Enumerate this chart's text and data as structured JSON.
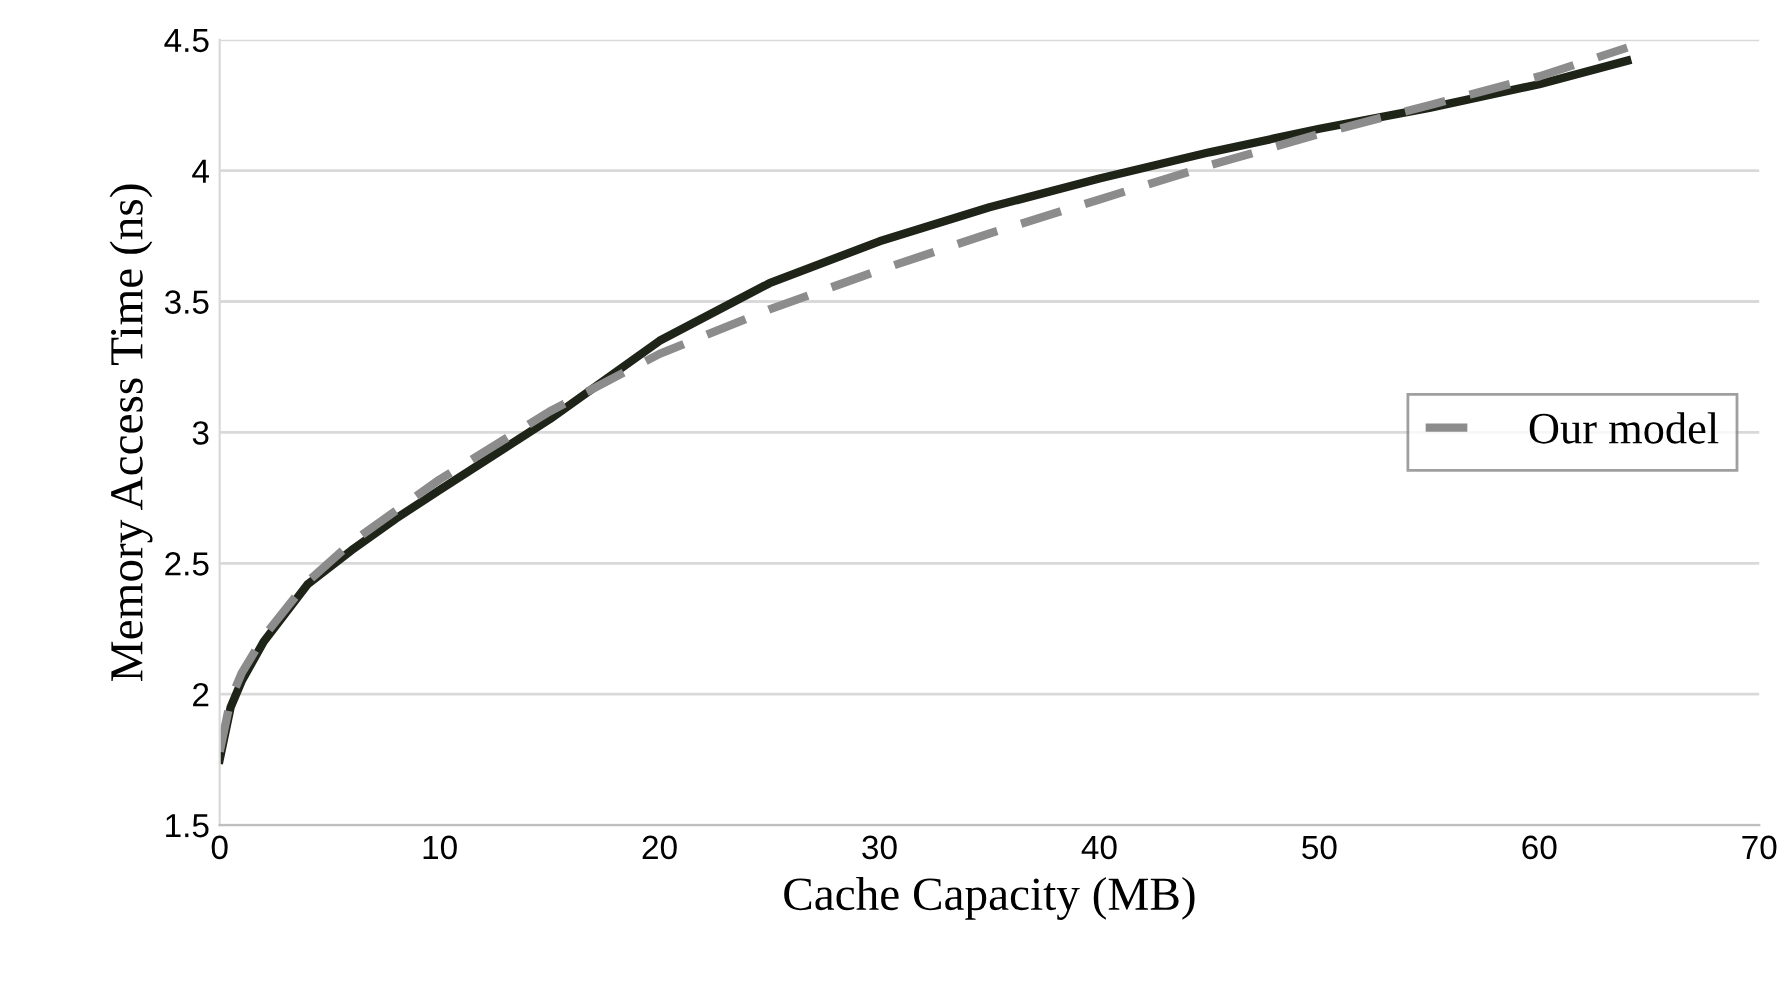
{
  "chart_data": {
    "type": "line",
    "xlabel": "Cache Capacity (MB)",
    "ylabel": "Memory Access Time (ns)",
    "xlim": [
      0,
      70
    ],
    "xticks": [
      0,
      10,
      20,
      30,
      40,
      50,
      60,
      70
    ],
    "ylim": [
      1.5,
      4.5
    ],
    "yticks": [
      1.5,
      2,
      2.5,
      3,
      3.5,
      4,
      4.5
    ],
    "grid": "y",
    "legend": "right",
    "series": [
      {
        "color": "#1f2419",
        "line_style": "solid",
        "x": [
          0,
          0.5,
          1,
          2,
          4,
          6,
          8,
          10,
          15,
          20,
          25,
          30,
          35,
          40,
          45,
          50,
          55,
          60,
          64
        ],
        "values": [
          1.75,
          1.95,
          2.05,
          2.2,
          2.42,
          2.55,
          2.67,
          2.78,
          3.05,
          3.35,
          3.57,
          3.73,
          3.86,
          3.97,
          4.07,
          4.16,
          4.24,
          4.33,
          4.42
        ]
      },
      {
        "name": "Our model",
        "color": "#8c8c8c",
        "line_style": "dashed",
        "x": [
          0,
          0.5,
          1,
          2,
          4,
          6,
          8,
          10,
          15,
          20,
          25,
          30,
          35,
          40,
          45,
          50,
          55,
          60,
          64
        ],
        "values": [
          1.78,
          1.98,
          2.08,
          2.22,
          2.43,
          2.58,
          2.7,
          2.82,
          3.08,
          3.3,
          3.47,
          3.62,
          3.76,
          3.89,
          4.02,
          4.14,
          4.25,
          4.36,
          4.47
        ]
      }
    ]
  }
}
